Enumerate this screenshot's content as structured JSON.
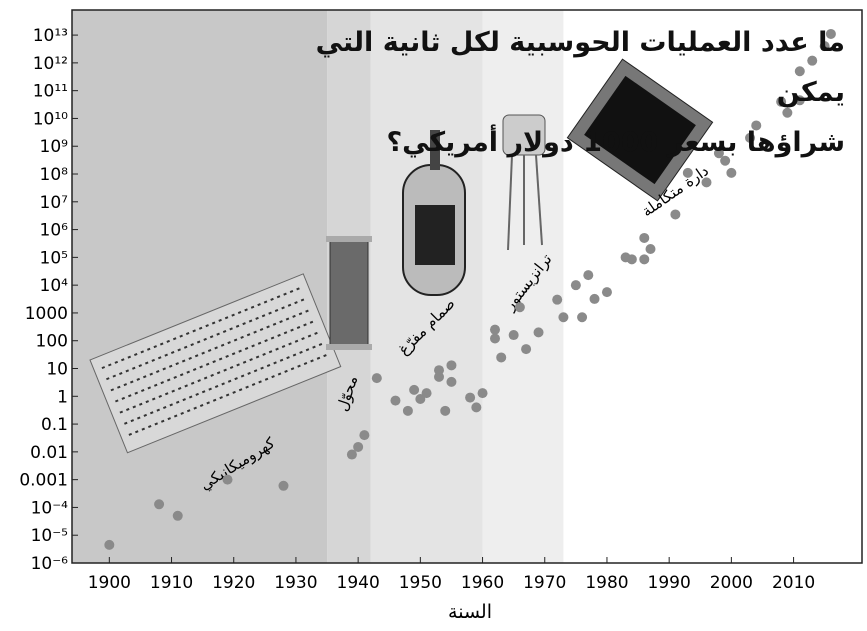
{
  "chart_data": {
    "type": "scatter",
    "title": [
      "ما عدد العمليات الحوسبية لكل ثانية التي يمكن",
      "شراؤها بسعر 1000 دولار أمريكي؟"
    ],
    "x_label": "السنة",
    "log_y": true,
    "xlim": [
      1894,
      2021
    ],
    "ylim": [
      1e-06,
      80000000000000
    ],
    "xticks": [
      1900,
      1910,
      1920,
      1930,
      1940,
      1950,
      1960,
      1970,
      1980,
      1990,
      2000,
      2010
    ],
    "yticks": [
      {
        "value": 10000000000000,
        "label": "10¹³"
      },
      {
        "value": 1000000000000,
        "label": "10¹²"
      },
      {
        "value": 100000000000,
        "label": "10¹¹"
      },
      {
        "value": 10000000000,
        "label": "10¹⁰"
      },
      {
        "value": 1000000000,
        "label": "10⁹"
      },
      {
        "value": 100000000,
        "label": "10⁸"
      },
      {
        "value": 10000000,
        "label": "10⁷"
      },
      {
        "value": 1000000,
        "label": "10⁶"
      },
      {
        "value": 100000,
        "label": "10⁵"
      },
      {
        "value": 10000,
        "label": "10⁴"
      },
      1000,
      100,
      10,
      1,
      0.1,
      0.01,
      0.001,
      {
        "value": 0.0001,
        "label": "10⁻⁴"
      },
      {
        "value": 1e-05,
        "label": "10⁻⁵"
      },
      {
        "value": 1e-06,
        "label": "10⁻⁶"
      }
    ],
    "eras": [
      {
        "label": "كهروميكانيكي",
        "start": 1894,
        "end": 1935,
        "color": "#c8c8c8"
      },
      {
        "label": "محوّل",
        "start": 1935,
        "end": 1942,
        "color": "#d6d6d6"
      },
      {
        "label": "صمام مفرّغ",
        "start": 1942,
        "end": 1960,
        "color": "#e4e4e4"
      },
      {
        "label": "ترانزيستور",
        "start": 1960,
        "end": 1973,
        "color": "#eeeeee"
      },
      {
        "label": "دارة متكاملة",
        "start": 1973,
        "end": 2021,
        "color": "#ffffff"
      }
    ],
    "x": [
      1900,
      1908,
      1911,
      1919,
      1928,
      1939,
      1940,
      1941,
      1943,
      1946,
      1948,
      1949,
      1950,
      1951,
      1953,
      1953,
      1954,
      1955,
      1955,
      1958,
      1959,
      1960,
      1962,
      1962,
      1963,
      1965,
      1966,
      1967,
      1969,
      1972,
      1973,
      1975,
      1976,
      1977,
      1978,
      1980,
      1983,
      1984,
      1986,
      1986,
      1987,
      1991,
      1993,
      1996,
      1998,
      1999,
      2000,
      2003,
      2004,
      2008,
      2009,
      2011,
      2011,
      2013,
      2015,
      2016
    ],
    "series": [
      {
        "color": "#8a8a8a",
        "values": [
          4.5e-06,
          0.00013,
          5e-05,
          0.001,
          0.0006,
          0.008,
          0.015,
          0.04,
          4.5,
          0.7,
          0.3,
          1.7,
          0.8,
          1.3,
          8.7,
          5,
          0.3,
          13,
          3.3,
          0.9,
          0.4,
          1.3,
          120,
          250,
          25,
          160,
          1600,
          50,
          200,
          3000,
          700,
          10000,
          700,
          23000,
          3200,
          5600,
          100000,
          85000,
          85000,
          500000,
          200000,
          3500000,
          110000000,
          50000000,
          560000000,
          300000000,
          110000000,
          2000000000,
          5600000000,
          40000000000,
          16000000000,
          45000000000,
          500000000000,
          1200000000000,
          4000000000000,
          11000000000000
        ]
      }
    ]
  }
}
